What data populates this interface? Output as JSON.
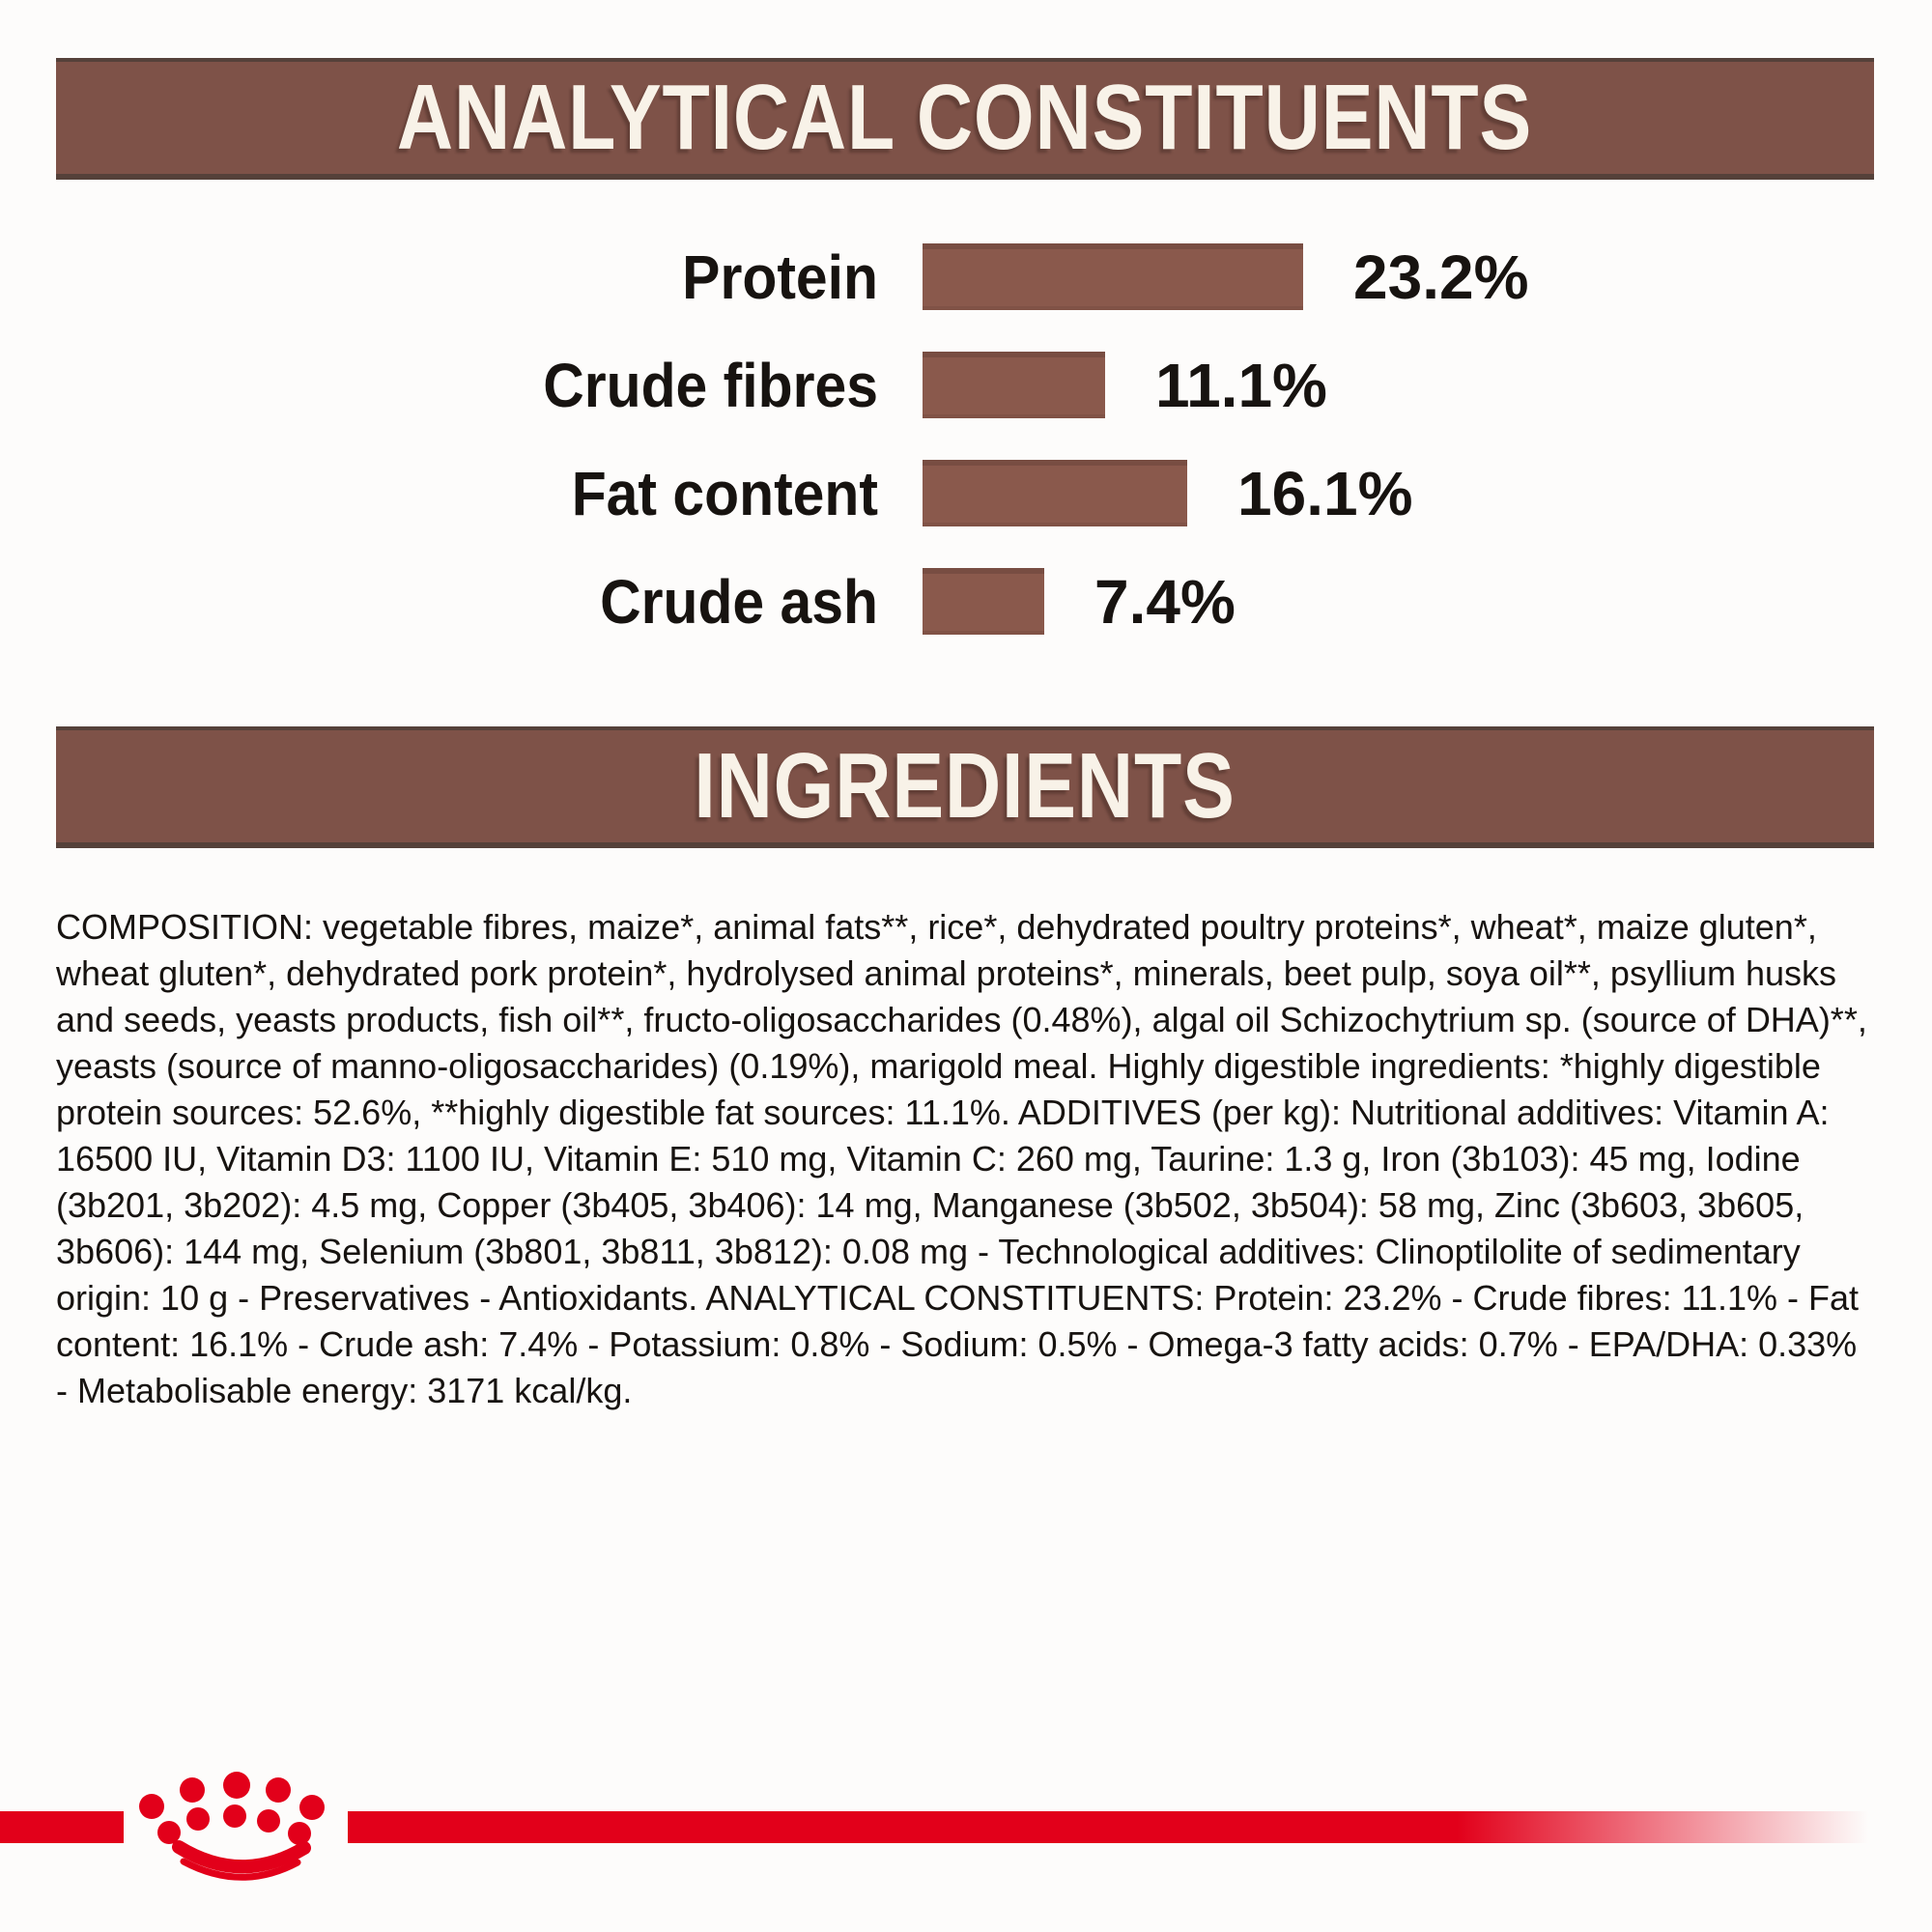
{
  "page": {
    "background": "#fdfcfb"
  },
  "colors": {
    "header_bg": "#7e5248",
    "header_edge": "#55413a",
    "header_text": "#f8f2e8",
    "bar_fill": "#8a594c",
    "body_text": "#171310",
    "brand_red": "#e2001a"
  },
  "sections": {
    "analytical_constituents": {
      "title": "ANALYTICAL CONSTITUENTS"
    },
    "ingredients": {
      "title": "INGREDIENTS"
    }
  },
  "chart_data": {
    "type": "bar",
    "orientation": "horizontal",
    "title": "ANALYTICAL CONSTITUENTS",
    "categories": [
      "Protein",
      "Crude fibres",
      "Fat content",
      "Crude ash"
    ],
    "values": [
      23.2,
      11.1,
      16.1,
      7.4
    ],
    "value_labels": [
      "23.2%",
      "11.1%",
      "16.1%",
      "7.4%"
    ],
    "unit": "percent",
    "xlim": [
      0,
      25
    ],
    "grid": false,
    "legend": false,
    "bar_color": "#8a594c"
  },
  "ingredients_text": "COMPOSITION: vegetable fibres, maize*, animal fats**, rice*, dehydrated poultry proteins*, wheat*, maize gluten*, wheat gluten*, dehydrated pork protein*, hydrolysed animal proteins*, minerals, beet pulp, soya oil**, psyllium husks and seeds, yeasts products, fish oil**, fructo-oligosaccharides (0.48%), algal oil Schizochytrium sp. (source of DHA)**, yeasts (source of manno-oligosaccharides) (0.19%), marigold meal. Highly digestible ingredients: *highly digestible protein sources: 52.6%, **highly digestible fat sources: 11.1%. ADDITIVES (per kg): Nutritional additives: Vitamin A: 16500 IU, Vitamin D3: 1100 IU, Vitamin E: 510 mg, Vitamin C: 260 mg, Taurine: 1.3 g, Iron (3b103): 45 mg, Iodine (3b201, 3b202): 4.5 mg, Copper (3b405, 3b406): 14 mg, Manganese (3b502, 3b504): 58 mg, Zinc (3b603, 3b605, 3b606): 144 mg, Selenium (3b801, 3b811, 3b812): 0.08 mg - Technological additives: Clinoptilolite of sedimentary origin: 10 g - Preservatives - Antioxidants. ANALYTICAL CONSTITUENTS: Protein: 23.2% - Crude fibres: 11.1% - Fat content: 16.1% - Crude ash: 7.4% - Potassium: 0.8% - Sodium: 0.5% - Omega-3 fatty acids: 0.7% - EPA/DHA: 0.33% - Metabolisable energy: 3171 kcal/kg.",
  "footer": {
    "logo_icon": "royal-canin-crown-icon"
  }
}
